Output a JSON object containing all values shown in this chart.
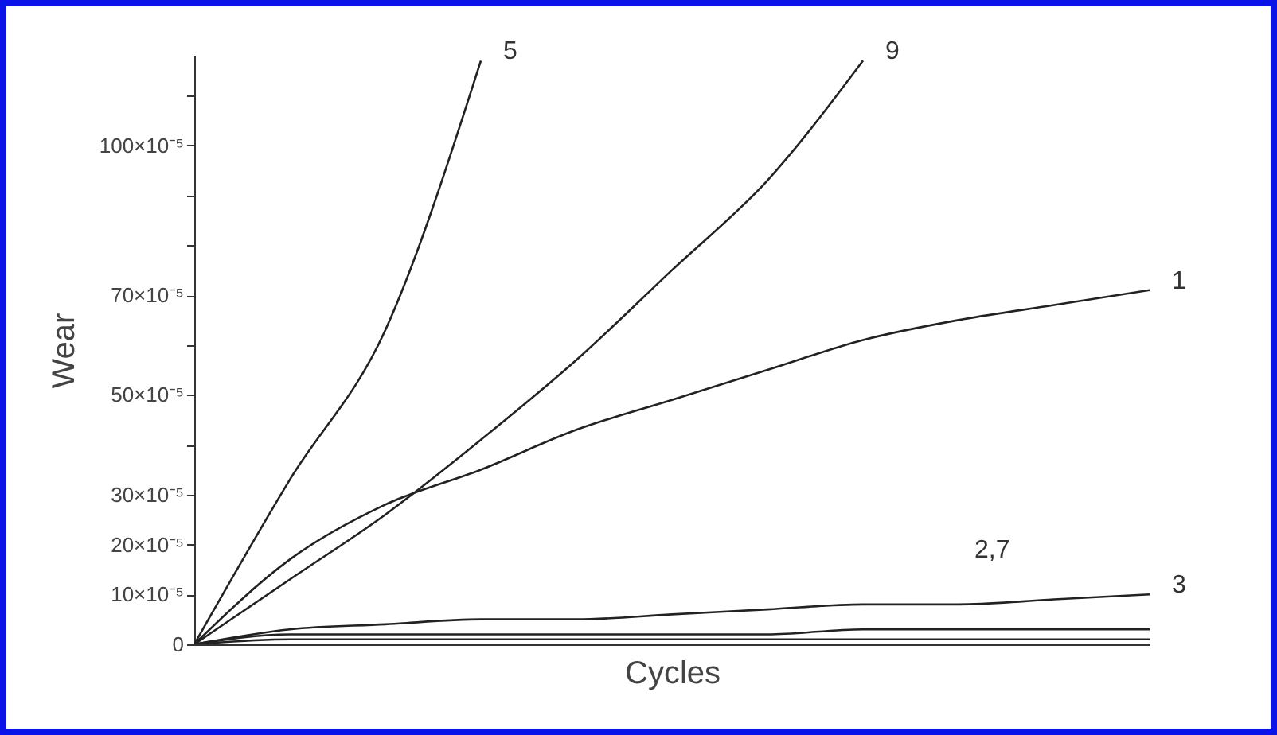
{
  "chart_data": {
    "type": "line",
    "xlabel": "Cycles",
    "ylabel": "Wear",
    "categories": [
      null,
      null,
      null,
      null,
      null,
      null,
      null,
      null,
      null,
      null,
      null
    ],
    "ylim": [
      0,
      0.00118
    ],
    "yticks": [
      0,
      {
        "value": 0.0001,
        "label": "10×10⁻⁵"
      },
      {
        "value": 0.0002,
        "label": "20×10⁻⁵"
      },
      {
        "value": 0.0003,
        "label": "30×10⁻⁵"
      },
      {
        "value": 0.0004,
        "label": null
      },
      {
        "value": 0.0005,
        "label": "50×10⁻⁵"
      },
      {
        "value": 0.0006,
        "label": null
      },
      {
        "value": 0.0007,
        "label": "70×10⁻⁵"
      },
      {
        "value": 0.0008,
        "label": null
      },
      {
        "value": 0.0009,
        "label": null
      },
      {
        "value": 0.001,
        "label": "100×10⁻⁵"
      },
      {
        "value": 0.0011,
        "label": null
      }
    ],
    "grid": false,
    "line_style": "solid",
    "tick_labels": "y",
    "series": [
      {
        "name": "5",
        "color": "#222222",
        "values": [
          0,
          0.00033,
          0.00063,
          0.00117,
          null,
          null,
          null,
          null,
          null,
          null,
          null
        ]
      },
      {
        "name": "9",
        "color": "#222222",
        "values": [
          0,
          0.00013,
          0.00026,
          0.00041,
          0.00057,
          0.00075,
          0.00093,
          0.00117,
          null,
          null,
          null
        ]
      },
      {
        "name": "1",
        "color": "#222222",
        "values": [
          0,
          0.00017,
          0.00028,
          0.00035,
          0.00043,
          0.00049,
          0.00055,
          0.00061,
          0.00065,
          0.00068,
          0.00071
        ]
      },
      {
        "name": "3",
        "color": "#222222",
        "values": [
          0,
          3e-05,
          4e-05,
          5e-05,
          5e-05,
          6e-05,
          7e-05,
          8e-05,
          8e-05,
          9e-05,
          0.0001
        ]
      },
      {
        "color": "#222222",
        "values": [
          0,
          2e-05,
          2e-05,
          2e-05,
          2e-05,
          2e-05,
          2e-05,
          3e-05,
          3e-05,
          3e-05,
          3e-05
        ]
      },
      {
        "color": "#222222",
        "values": [
          0,
          1e-05,
          1e-05,
          1e-05,
          1e-05,
          1e-05,
          1e-05,
          1e-05,
          1e-05,
          1e-05,
          1e-05
        ]
      }
    ],
    "annotations": [
      {
        "text": "2,7",
        "y": 3e-05
      }
    ]
  }
}
